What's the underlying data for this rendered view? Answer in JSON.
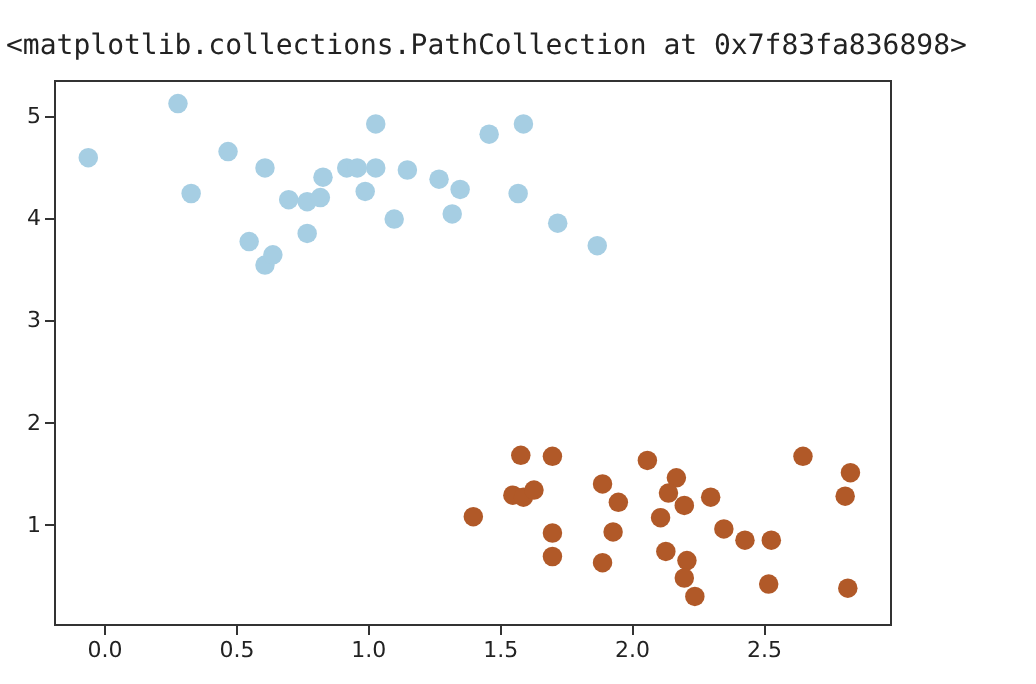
{
  "chart_data": {
    "type": "scatter",
    "annotations": [
      "<matplotlib.collections.PathCollection at 0x7f83fa836898>"
    ],
    "xlim": [
      -0.19,
      2.98
    ],
    "ylim": [
      0.03,
      5.35
    ],
    "xticks": [
      {
        "value": 0,
        "label": "0.0"
      },
      {
        "value": 0.5,
        "label": "0.5"
      },
      {
        "value": 1,
        "label": "1.0"
      },
      {
        "value": 1.5,
        "label": "1.5"
      },
      {
        "value": 2,
        "label": "2.0"
      },
      {
        "value": 2.5,
        "label": "2.5"
      }
    ],
    "yticks": [
      1,
      2,
      3,
      4,
      5
    ],
    "grid": false,
    "legend": false,
    "marker": "circle",
    "series": [
      {
        "color": "#a6cee3",
        "x": [
          -0.06,
          0.28,
          0.33,
          0.47,
          0.61,
          0.55,
          0.61,
          0.64,
          0.7,
          0.77,
          0.82,
          0.83,
          0.77,
          0.92,
          0.96,
          0.99,
          1.03,
          1.03,
          1.1,
          1.15,
          1.27,
          1.32,
          1.35,
          1.46,
          1.59,
          1.57,
          1.72,
          1.87
        ],
        "values": [
          4.59,
          5.12,
          4.24,
          4.65,
          4.49,
          3.77,
          3.54,
          3.64,
          4.18,
          4.16,
          4.2,
          4.4,
          3.85,
          4.49,
          4.49,
          4.26,
          4.49,
          4.92,
          3.99,
          4.47,
          4.38,
          4.04,
          4.28,
          4.82,
          4.92,
          4.24,
          3.95,
          3.73
        ]
      },
      {
        "color": "#b15928",
        "x": [
          1.4,
          1.58,
          1.7,
          1.55,
          1.59,
          1.63,
          1.7,
          1.7,
          1.89,
          1.95,
          1.93,
          1.89,
          2.06,
          2.17,
          2.14,
          2.2,
          2.11,
          2.13,
          2.3,
          2.35,
          2.43,
          2.53,
          2.21,
          2.2,
          2.24,
          2.52,
          2.65,
          2.83,
          2.81,
          2.82
        ],
        "values": [
          1.08,
          1.68,
          1.67,
          1.29,
          1.27,
          1.34,
          0.92,
          0.69,
          1.4,
          1.22,
          0.93,
          0.63,
          1.63,
          1.46,
          1.31,
          1.19,
          1.07,
          0.74,
          1.27,
          0.96,
          0.85,
          0.85,
          0.65,
          0.48,
          0.3,
          0.42,
          1.67,
          1.51,
          1.28,
          0.38
        ]
      }
    ]
  }
}
